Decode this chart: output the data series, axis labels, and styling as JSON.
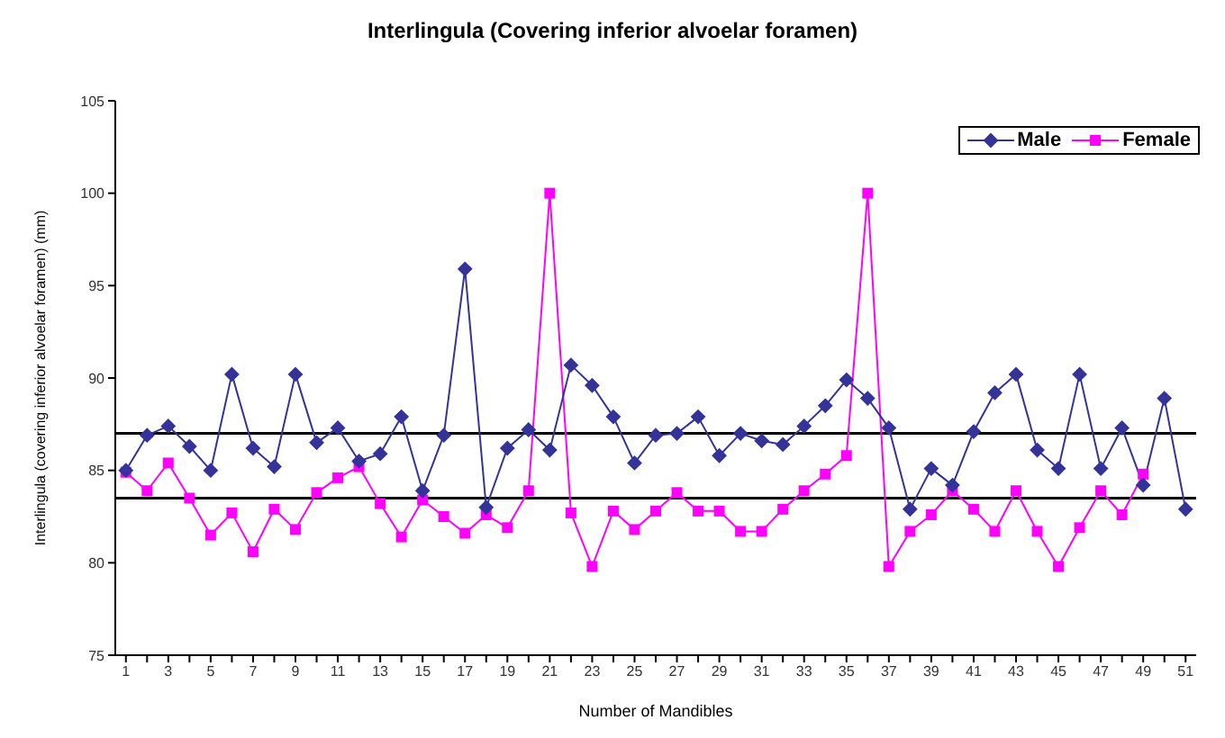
{
  "chart_data": {
    "type": "line",
    "title": "Interlingula (Covering inferior alvoelar foramen)",
    "xlabel": "Number of Mandibles",
    "ylabel": "Interlingula (covering inferior alvoelar foramen) (mm)",
    "x": [
      1,
      2,
      3,
      4,
      5,
      6,
      7,
      8,
      9,
      10,
      11,
      12,
      13,
      14,
      15,
      16,
      17,
      18,
      19,
      20,
      21,
      22,
      23,
      24,
      25,
      26,
      27,
      28,
      29,
      30,
      31,
      32,
      33,
      34,
      35,
      36,
      37,
      38,
      39,
      40,
      41,
      42,
      43,
      44,
      45,
      46,
      47,
      48,
      49,
      50,
      51
    ],
    "xlim": [
      0.5,
      51.5
    ],
    "xticks": [
      1,
      {
        "value": 2,
        "label": null
      },
      3,
      {
        "value": 4,
        "label": null
      },
      5,
      {
        "value": 6,
        "label": null
      },
      7,
      {
        "value": 8,
        "label": null
      },
      9,
      {
        "value": 10,
        "label": null
      },
      11,
      {
        "value": 12,
        "label": null
      },
      13,
      {
        "value": 14,
        "label": null
      },
      15,
      {
        "value": 16,
        "label": null
      },
      17,
      {
        "value": 18,
        "label": null
      },
      19,
      {
        "value": 20,
        "label": null
      },
      21,
      {
        "value": 22,
        "label": null
      },
      23,
      {
        "value": 24,
        "label": null
      },
      25,
      {
        "value": 26,
        "label": null
      },
      27,
      {
        "value": 28,
        "label": null
      },
      29,
      {
        "value": 30,
        "label": null
      },
      31,
      {
        "value": 32,
        "label": null
      },
      33,
      {
        "value": 34,
        "label": null
      },
      35,
      {
        "value": 36,
        "label": null
      },
      37,
      {
        "value": 38,
        "label": null
      },
      39,
      {
        "value": 40,
        "label": null
      },
      41,
      {
        "value": 42,
        "label": null
      },
      43,
      {
        "value": 44,
        "label": null
      },
      45,
      {
        "value": 46,
        "label": null
      },
      47,
      {
        "value": 48,
        "label": null
      },
      49,
      {
        "value": 50,
        "label": null
      },
      51
    ],
    "series": [
      {
        "name": "Male",
        "color": "#333399",
        "marker": "diamond",
        "values": [
          85.0,
          86.9,
          87.4,
          86.3,
          85.0,
          90.2,
          86.2,
          85.2,
          90.2,
          86.5,
          87.3,
          85.5,
          85.9,
          87.9,
          83.9,
          86.9,
          95.9,
          83.0,
          86.2,
          87.2,
          86.1,
          90.7,
          89.6,
          87.9,
          85.4,
          86.9,
          87.0,
          87.9,
          85.8,
          87.0,
          86.6,
          86.4,
          87.4,
          88.5,
          89.9,
          88.9,
          87.3,
          82.9,
          85.1,
          84.2,
          87.1,
          89.2,
          90.2,
          86.1,
          85.1,
          90.2,
          85.1,
          87.3,
          84.2,
          88.9,
          82.9
        ]
      },
      {
        "name": "Female",
        "color": "#ff00ff",
        "marker": "square",
        "values": [
          84.9,
          83.9,
          85.4,
          83.5,
          81.5,
          82.7,
          80.6,
          82.9,
          81.8,
          83.8,
          84.6,
          85.2,
          83.2,
          81.4,
          83.4,
          82.5,
          81.6,
          82.6,
          81.9,
          83.9,
          100,
          82.7,
          79.8,
          82.8,
          81.8,
          82.8,
          83.8,
          82.8,
          82.8,
          81.7,
          81.7,
          82.9,
          83.9,
          84.8,
          85.8,
          100,
          79.8,
          81.7,
          82.6,
          83.9,
          82.9,
          81.7,
          83.9,
          81.7,
          79.8,
          81.9,
          83.9,
          82.6,
          84.8,
          null,
          null
        ]
      }
    ],
    "ref_lines": [
      {
        "axis": "y",
        "value": 87.0,
        "color": "#000000"
      },
      {
        "axis": "y",
        "value": 83.5,
        "color": "#000000"
      }
    ],
    "ylim": [
      75,
      105
    ],
    "yticks": [
      75,
      80,
      85,
      90,
      95,
      100,
      105
    ],
    "legend": "top right",
    "grid": false
  }
}
